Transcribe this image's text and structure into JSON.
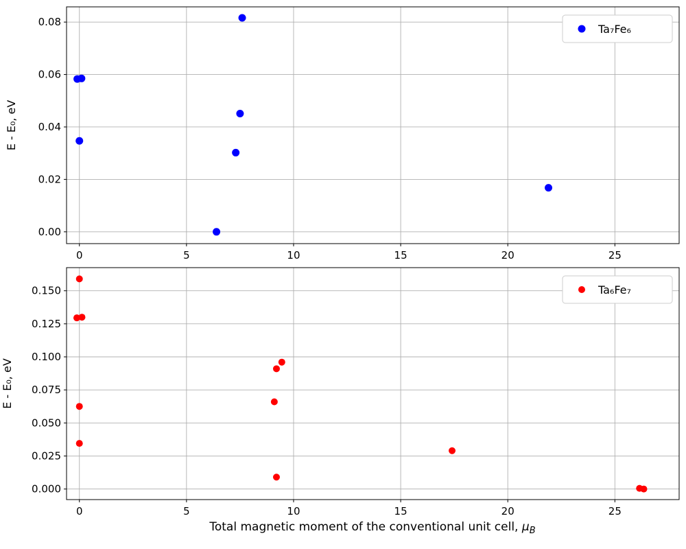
{
  "figure": {
    "background_color": "#ffffff",
    "grid_color": "#b0b0b0",
    "x_axis_label": {
      "text": "Total magnetic moment of the conventional unit cell, ",
      "mu": "μ",
      "sub": "B"
    }
  },
  "chart_data": [
    {
      "type": "scatter",
      "title": "",
      "ylabel": "E - E₀, eV",
      "legend": {
        "label": "Ta₇Fe₆",
        "position": "upper right"
      },
      "color": "#0000ff",
      "grid": true,
      "xlim": [
        -0.6,
        28.0
      ],
      "ylim": [
        -0.0045,
        0.0858
      ],
      "xticks": [
        0,
        5,
        10,
        15,
        20,
        25
      ],
      "yticks": [
        0,
        0.02,
        0.04,
        0.06,
        0.08
      ],
      "ytick_decimals": 2,
      "points": [
        [
          -0.1,
          0.0583
        ],
        [
          0.1,
          0.0585
        ],
        [
          0.0,
          0.0347
        ],
        [
          6.4,
          0.0
        ],
        [
          7.3,
          0.0302
        ],
        [
          7.5,
          0.0451
        ],
        [
          7.6,
          0.0816
        ],
        [
          21.9,
          0.0168
        ]
      ]
    },
    {
      "type": "scatter",
      "title": "",
      "ylabel": "E - E₀, eV",
      "legend": {
        "label": "Ta₆Fe₇",
        "position": "upper right"
      },
      "color": "#ff0000",
      "grid": true,
      "xlim": [
        -0.6,
        28.0
      ],
      "ylim": [
        -0.008,
        0.1675
      ],
      "xticks": [
        0,
        5,
        10,
        15,
        20,
        25
      ],
      "yticks": [
        0,
        0.025,
        0.05,
        0.075,
        0.1,
        0.125,
        0.15
      ],
      "ytick_decimals": 3,
      "points": [
        [
          0.0,
          0.159
        ],
        [
          -0.12,
          0.1295
        ],
        [
          0.12,
          0.13
        ],
        [
          0.0,
          0.0625
        ],
        [
          0.0,
          0.0345
        ],
        [
          9.2,
          0.091
        ],
        [
          9.45,
          0.096
        ],
        [
          9.1,
          0.066
        ],
        [
          9.2,
          0.009
        ],
        [
          17.4,
          0.029
        ],
        [
          26.15,
          0.0005
        ],
        [
          26.35,
          0.0
        ]
      ]
    }
  ]
}
